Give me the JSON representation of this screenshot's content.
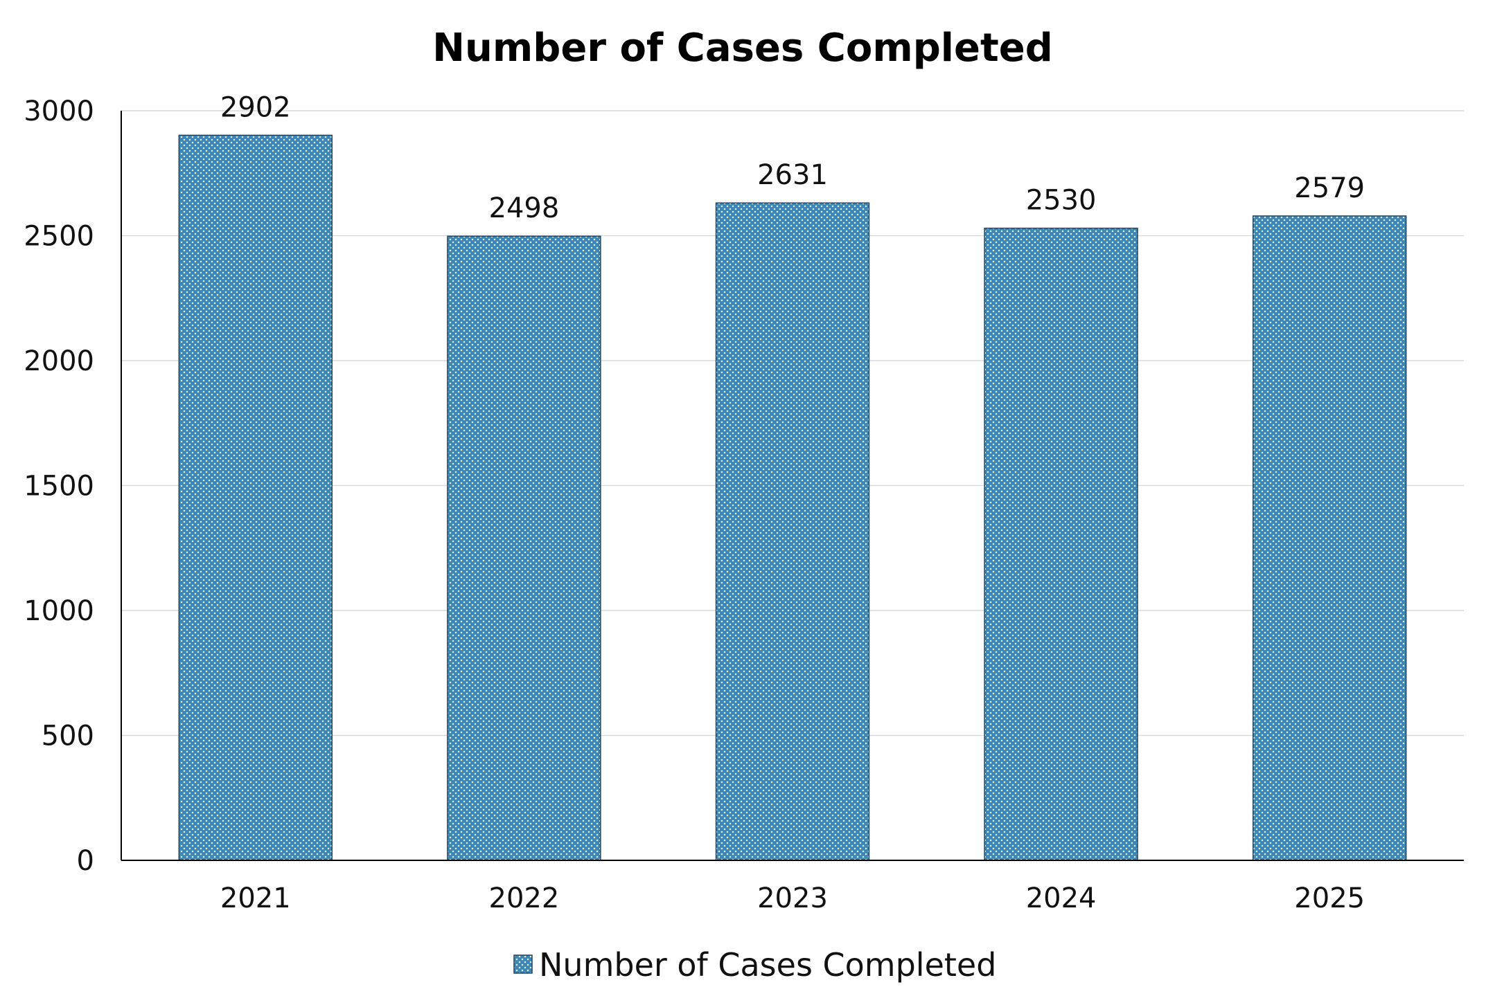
{
  "chart_data": {
    "type": "bar",
    "title": "Number of Cases Completed",
    "xlabel": "",
    "ylabel": "",
    "categories": [
      "2021",
      "2022",
      "2023",
      "2024",
      "2025"
    ],
    "series": [
      {
        "name": "Number of Cases Completed",
        "values": [
          2902,
          2498,
          2631,
          2530,
          2579
        ],
        "color": "#3d86b8",
        "pattern": "dotted"
      }
    ],
    "data_labels": [
      "2902",
      "2498",
      "2631",
      "2530",
      "2579"
    ],
    "ylim": [
      0,
      3000
    ],
    "yticks": [
      0,
      500,
      1000,
      1500,
      2000,
      2500,
      3000
    ],
    "grid": true,
    "legend_position": "bottom"
  }
}
